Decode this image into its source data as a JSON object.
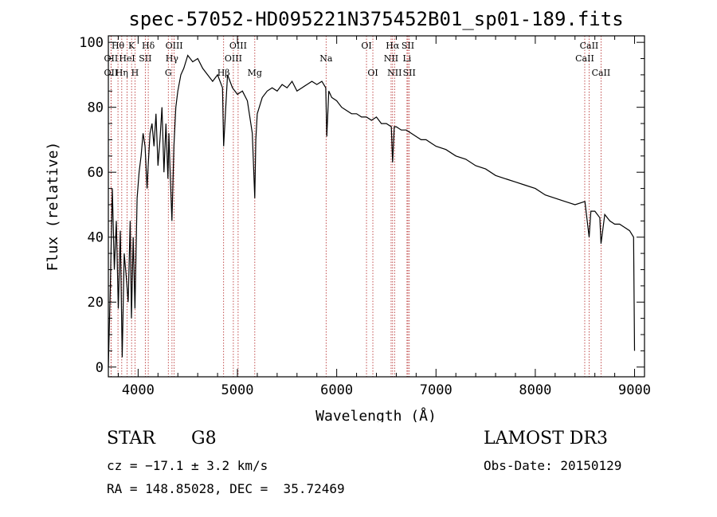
{
  "chart_data": {
    "type": "line",
    "title": "spec-57052-HD095221N375452B01_sp01-189.fits",
    "xlabel": "Wavelength (Å)",
    "ylabel": "Flux (relative)",
    "xlim": [
      3700,
      9100
    ],
    "ylim": [
      -3,
      102
    ],
    "xticks": [
      4000,
      5000,
      6000,
      7000,
      8000,
      9000
    ],
    "yticks": [
      0,
      20,
      40,
      60,
      80,
      100
    ],
    "grid": false,
    "series": [
      {
        "name": "spectrum",
        "x": [
          3700,
          3720,
          3740,
          3760,
          3780,
          3800,
          3820,
          3840,
          3860,
          3880,
          3900,
          3920,
          3933,
          3950,
          3968,
          3990,
          4010,
          4030,
          4050,
          4070,
          4090,
          4101,
          4120,
          4140,
          4160,
          4180,
          4200,
          4220,
          4240,
          4260,
          4280,
          4300,
          4310,
          4320,
          4340,
          4360,
          4380,
          4400,
          4430,
          4460,
          4500,
          4550,
          4600,
          4650,
          4700,
          4750,
          4800,
          4850,
          4861,
          4900,
          4950,
          5000,
          5050,
          5100,
          5150,
          5175,
          5185,
          5200,
          5250,
          5300,
          5350,
          5400,
          5450,
          5500,
          5550,
          5600,
          5650,
          5700,
          5750,
          5800,
          5850,
          5890,
          5900,
          5920,
          5950,
          6000,
          6050,
          6100,
          6150,
          6200,
          6250,
          6300,
          6350,
          6400,
          6450,
          6500,
          6550,
          6563,
          6580,
          6600,
          6650,
          6700,
          6750,
          6800,
          6850,
          6900,
          6950,
          7000,
          7100,
          7200,
          7300,
          7400,
          7500,
          7600,
          7700,
          7800,
          7900,
          8000,
          8100,
          8200,
          8300,
          8400,
          8500,
          8542,
          8560,
          8600,
          8650,
          8662,
          8700,
          8750,
          8800,
          8850,
          8900,
          8950,
          8990,
          9000
        ],
        "y": [
          0,
          25,
          55,
          30,
          45,
          18,
          42,
          3,
          35,
          28,
          20,
          45,
          15,
          40,
          18,
          52,
          60,
          65,
          72,
          68,
          55,
          62,
          72,
          75,
          68,
          78,
          62,
          70,
          80,
          60,
          75,
          58,
          72,
          62,
          45,
          68,
          80,
          85,
          90,
          92,
          96,
          94,
          95,
          92,
          90,
          88,
          90,
          86,
          68,
          90,
          86,
          84,
          85,
          82,
          72,
          52,
          70,
          78,
          83,
          85,
          86,
          85,
          87,
          86,
          88,
          85,
          86,
          87,
          88,
          87,
          88,
          86,
          71,
          85,
          83,
          82,
          80,
          79,
          78,
          78,
          77,
          77,
          76,
          77,
          75,
          75,
          74,
          63,
          74,
          74,
          73,
          73,
          72,
          71,
          70,
          70,
          69,
          68,
          67,
          65,
          64,
          62,
          61,
          59,
          58,
          57,
          56,
          55,
          53,
          52,
          51,
          50,
          51,
          40,
          48,
          48,
          46,
          38,
          47,
          45,
          44,
          44,
          43,
          42,
          40,
          5
        ]
      }
    ],
    "lines": [
      {
        "label": "Hθ",
        "x": 3797,
        "row": 1
      },
      {
        "label": "OII",
        "x": 3727,
        "row": 2
      },
      {
        "label": "OII",
        "x": 3727,
        "row": 3
      },
      {
        "label": "Hη",
        "x": 3835,
        "row": 3
      },
      {
        "label": "HeI",
        "x": 3889,
        "row": 2
      },
      {
        "label": "K",
        "x": 3934,
        "row": 1
      },
      {
        "label": "H",
        "x": 3968,
        "row": 3
      },
      {
        "label": "SII",
        "x": 4072,
        "row": 2
      },
      {
        "label": "Hδ",
        "x": 4102,
        "row": 1
      },
      {
        "label": "G",
        "x": 4304,
        "row": 3
      },
      {
        "label": "Hγ",
        "x": 4341,
        "row": 2
      },
      {
        "label": "OIII",
        "x": 4363,
        "row": 1
      },
      {
        "label": "Hβ",
        "x": 4861,
        "row": 3
      },
      {
        "label": "OIII",
        "x": 4959,
        "row": 2
      },
      {
        "label": "OIII",
        "x": 5007,
        "row": 1
      },
      {
        "label": "Mg",
        "x": 5175,
        "row": 3
      },
      {
        "label": "Na",
        "x": 5893,
        "row": 2
      },
      {
        "label": "OI",
        "x": 6300,
        "row": 1
      },
      {
        "label": "OI",
        "x": 6364,
        "row": 3
      },
      {
        "label": "NII",
        "x": 6548,
        "row": 2
      },
      {
        "label": "Hα",
        "x": 6563,
        "row": 1
      },
      {
        "label": "NII",
        "x": 6583,
        "row": 3
      },
      {
        "label": "Li",
        "x": 6708,
        "row": 2
      },
      {
        "label": "SII",
        "x": 6717,
        "row": 1
      },
      {
        "label": "SII",
        "x": 6731,
        "row": 3
      },
      {
        "label": "CaII",
        "x": 8498,
        "row": 2
      },
      {
        "label": "CaII",
        "x": 8542,
        "row": 1
      },
      {
        "label": "CaII",
        "x": 8662,
        "row": 3
      }
    ]
  },
  "info": {
    "obj_class": "STAR",
    "subclass": "G8",
    "survey": "LAMOST DR3",
    "cz": "cz = −17.1 ± 3.2 km/s",
    "obs_date": "Obs-Date: 20150129",
    "coords": "RA = 148.85028, DEC =  35.72469"
  },
  "colors": {
    "spectrum": "#000000",
    "line_marker": "#b22222",
    "axis": "#000000"
  }
}
